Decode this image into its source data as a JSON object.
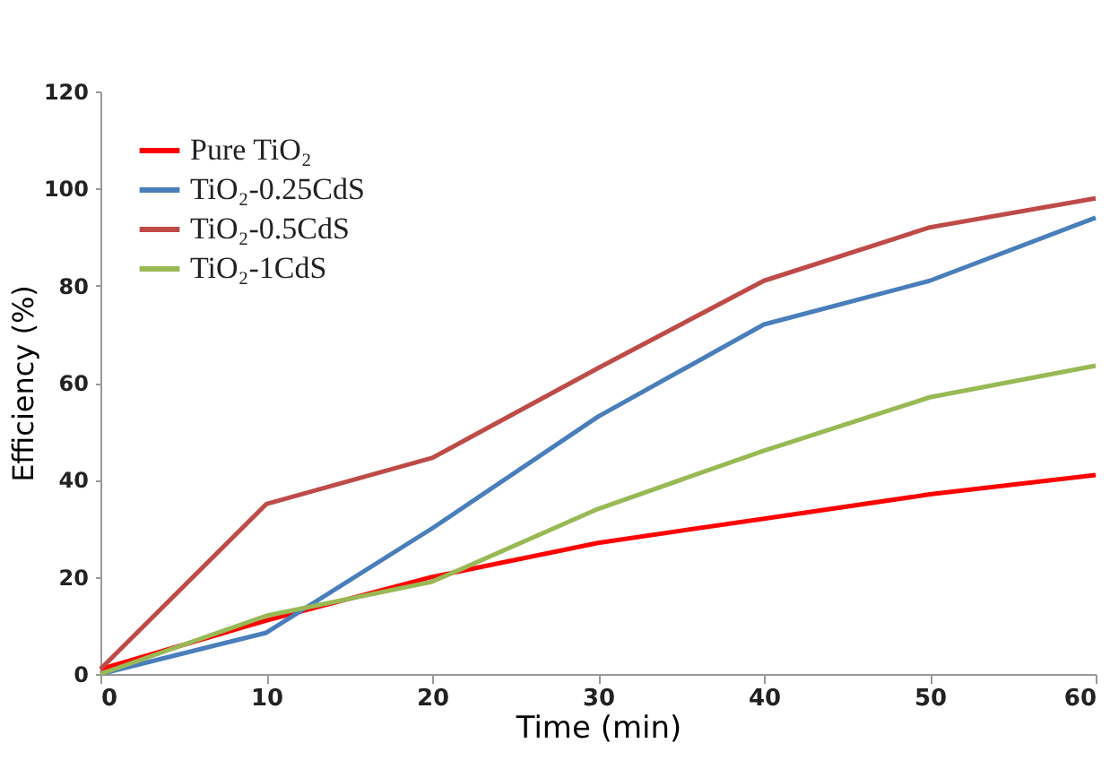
{
  "chart_data": {
    "type": "line",
    "xlabel": "Time (min)",
    "ylabel": "Efficiency (%)",
    "x": [
      0,
      10,
      20,
      30,
      40,
      50,
      60
    ],
    "series": [
      {
        "name": "Pure TiO₂",
        "color": "#ff0000",
        "values": [
          1,
          11,
          20,
          27,
          32,
          37,
          41
        ]
      },
      {
        "name": "TiO₂-0.25CdS",
        "color": "#4a7ebb",
        "values": [
          0,
          8.5,
          30,
          53,
          72,
          81,
          94
        ]
      },
      {
        "name": "TiO₂-0.5CdS",
        "color": "#be4b48",
        "values": [
          1,
          35,
          44.5,
          63,
          81,
          92,
          98
        ]
      },
      {
        "name": "TiO₂-1CdS",
        "color": "#98b954",
        "values": [
          0,
          12,
          19,
          34,
          46,
          57,
          63.5
        ]
      }
    ],
    "xlim": [
      0,
      60
    ],
    "xticks": [
      0,
      10,
      20,
      30,
      40,
      50,
      60
    ],
    "ylim": [
      0,
      120
    ],
    "yticks": [
      0,
      20,
      40,
      60,
      80,
      100,
      120
    ],
    "grid": false,
    "legend": "top left",
    "marker": "none",
    "line_style": "solid"
  }
}
